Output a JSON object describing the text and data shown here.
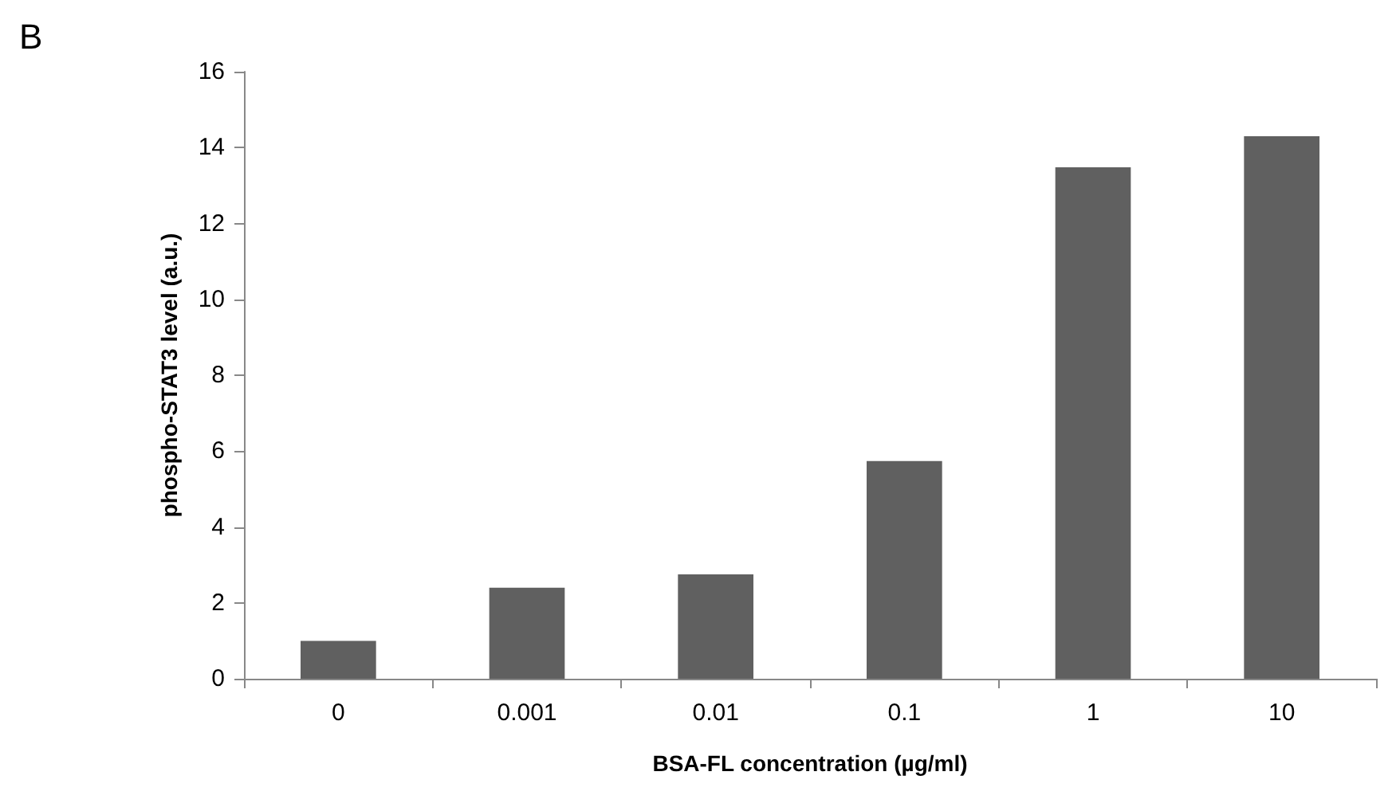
{
  "chart_data": {
    "type": "bar",
    "xlabel": "BSA-FL concentration (µg/ml)",
    "ylabel": "phospho-STAT3 level (a.u.)",
    "annotations": [
      "B"
    ],
    "categories": [
      "0",
      "0.001",
      "0.01",
      "0.1",
      "1",
      "10"
    ],
    "values": [
      1.0,
      2.4,
      2.75,
      5.74,
      13.48,
      14.3
    ],
    "color": "#606060",
    "ylim": [
      0,
      16
    ],
    "yticks": [
      0,
      2,
      4,
      6,
      8,
      10,
      12,
      14,
      16
    ],
    "grid": false
  }
}
